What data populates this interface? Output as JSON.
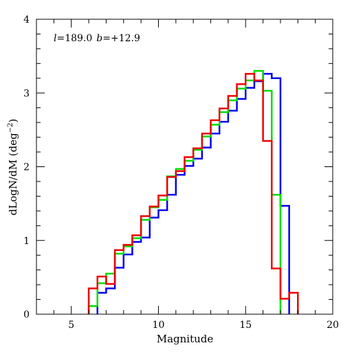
{
  "chart_data": {
    "type": "line",
    "subtype": "step-histogram",
    "title": "",
    "annotation": {
      "l_symbol": "l",
      "l_value": "=189.0",
      "b_symbol": "b",
      "b_value": "=+12.9"
    },
    "xlabel": "Magnitude",
    "ylabel": "dLogN/dM (deg",
    "ylabel_exponent": "−2",
    "ylabel_suffix": ")",
    "xlim": [
      3,
      20
    ],
    "ylim": [
      0,
      4
    ],
    "xticks": [
      5,
      10,
      15,
      20
    ],
    "yticks": [
      0,
      1,
      2,
      3,
      4
    ],
    "xtick_labels": [
      "5",
      "10",
      "15",
      "20"
    ],
    "ytick_labels": [
      "0",
      "1",
      "2",
      "3",
      "4"
    ],
    "bin_width": 0.5,
    "series": [
      {
        "color": "#0000ee",
        "bin_start": 6.5,
        "bin_end": 17.5,
        "values": [
          0.29,
          0.35,
          0.63,
          0.81,
          0.98,
          1.04,
          1.31,
          1.41,
          1.62,
          1.89,
          2.01,
          2.11,
          2.26,
          2.45,
          2.61,
          2.76,
          2.92,
          3.07,
          3.16,
          3.26,
          3.2,
          1.47
        ]
      },
      {
        "color": "#00dd00",
        "bin_start": 6.0,
        "bin_end": 17.0,
        "values": [
          0.11,
          0.42,
          0.55,
          0.82,
          0.92,
          1.03,
          1.28,
          1.45,
          1.55,
          1.87,
          1.97,
          2.08,
          2.23,
          2.41,
          2.57,
          2.74,
          2.9,
          3.06,
          3.17,
          3.3,
          3.03,
          1.62
        ]
      },
      {
        "color": "#ee0000",
        "bin_start": 6.0,
        "bin_end": 18.0,
        "values": [
          0.35,
          0.51,
          0.41,
          0.87,
          0.94,
          1.07,
          1.33,
          1.46,
          1.61,
          1.86,
          1.94,
          2.13,
          2.25,
          2.45,
          2.63,
          2.79,
          2.96,
          3.12,
          3.26,
          3.17,
          2.35,
          0.62,
          0.21,
          0.29
        ]
      }
    ]
  }
}
